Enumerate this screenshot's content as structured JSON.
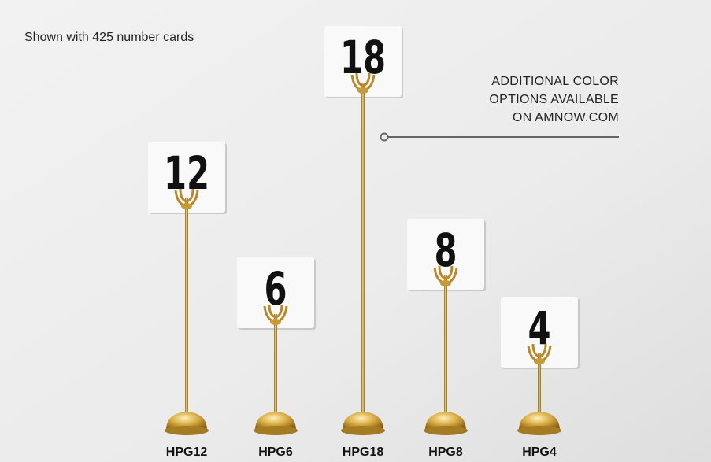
{
  "caption": "Shown with 425 number cards",
  "note": {
    "lines": [
      "ADDITIONAL COLOR",
      "OPTIONS AVAILABLE",
      "ON AMNOW.COM"
    ]
  },
  "products": [
    {
      "number": "12",
      "label": "HPG12"
    },
    {
      "number": "6",
      "label": "HPG6"
    },
    {
      "number": "18",
      "label": "HPG18"
    },
    {
      "number": "8",
      "label": "HPG8"
    },
    {
      "number": "4",
      "label": "HPG4"
    }
  ]
}
